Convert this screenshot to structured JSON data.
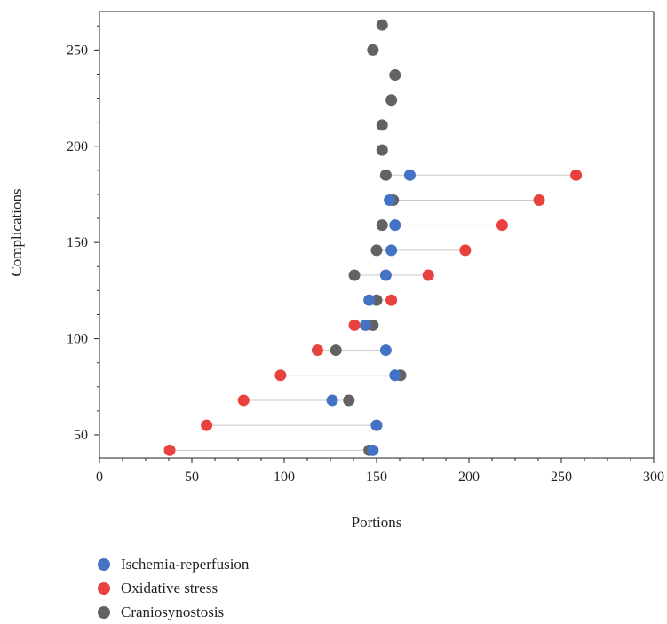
{
  "chart_data": {
    "type": "dumbbell-scatter",
    "xlabel": "Portions",
    "ylabel": "Complications",
    "xlim": [
      0,
      300
    ],
    "ylim": [
      38,
      270
    ],
    "x_ticks": [
      0,
      50,
      100,
      150,
      200,
      250,
      300
    ],
    "y_ticks": [
      50,
      100,
      150,
      200,
      250
    ],
    "grid": false,
    "legend_position": "bottom-left",
    "series": [
      {
        "name": "Ischemia-reperfusion",
        "color": "#4472c4",
        "points": [
          [
            148,
            42
          ],
          [
            150,
            55
          ],
          [
            126,
            68
          ],
          [
            160,
            81
          ],
          [
            155,
            94
          ],
          [
            144,
            107
          ],
          [
            146,
            120
          ],
          [
            155,
            133
          ],
          [
            158,
            146
          ],
          [
            160,
            159
          ],
          [
            157,
            172
          ],
          [
            168,
            185
          ]
        ]
      },
      {
        "name": "Oxidative stress",
        "color": "#e8413e",
        "points": [
          [
            38,
            42
          ],
          [
            58,
            55
          ],
          [
            78,
            68
          ],
          [
            98,
            81
          ],
          [
            118,
            94
          ],
          [
            138,
            107
          ],
          [
            158,
            120
          ],
          [
            178,
            133
          ],
          [
            198,
            146
          ],
          [
            218,
            159
          ],
          [
            238,
            172
          ],
          [
            258,
            185
          ]
        ]
      },
      {
        "name": "Craniosynostosis",
        "color": "#626262",
        "points": [
          [
            146,
            42
          ],
          [
            150,
            55
          ],
          [
            135,
            68
          ],
          [
            163,
            81
          ],
          [
            128,
            94
          ],
          [
            148,
            107
          ],
          [
            150,
            120
          ],
          [
            138,
            133
          ],
          [
            150,
            146
          ],
          [
            153,
            159
          ],
          [
            159,
            172
          ],
          [
            155,
            185
          ],
          [
            153,
            198
          ],
          [
            153,
            211
          ],
          [
            158,
            224
          ],
          [
            160,
            237
          ],
          [
            148,
            250
          ],
          [
            153,
            263
          ]
        ]
      }
    ]
  }
}
